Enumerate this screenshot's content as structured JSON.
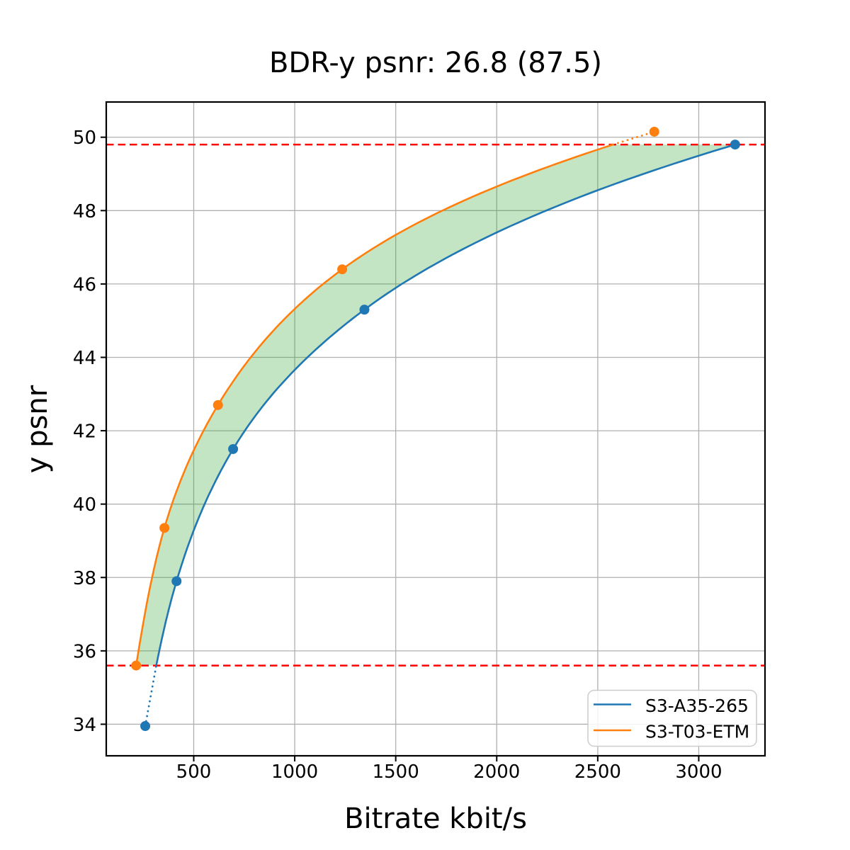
{
  "figure": {
    "background": "#ffffff"
  },
  "chart_data": {
    "type": "line",
    "title": "BDR-y psnr: 26.8 (87.5)",
    "xlabel": "Bitrate kbit/s",
    "ylabel": "y psnr",
    "xlim": [
      67,
      3328
    ],
    "ylim": [
      33.14,
      50.96
    ],
    "x_ticks": [
      500,
      1000,
      1500,
      2000,
      2500,
      3000
    ],
    "y_ticks": [
      34,
      36,
      38,
      40,
      42,
      44,
      46,
      48,
      50
    ],
    "grid": true,
    "grid_color": "#b0b0b0",
    "series": [
      {
        "name": "S3-A35-265",
        "color": "#1f77b4",
        "points": [
          [
            260,
            33.95
          ],
          [
            415,
            37.9
          ],
          [
            695,
            41.5
          ],
          [
            1345,
            45.3
          ],
          [
            3180,
            49.8
          ]
        ]
      },
      {
        "name": "S3-T03-ETM",
        "color": "#ff7f0e",
        "points": [
          [
            215,
            35.6
          ],
          [
            355,
            39.35
          ],
          [
            620,
            42.7
          ],
          [
            1235,
            46.4
          ],
          [
            2780,
            50.15
          ]
        ]
      }
    ],
    "overlap_psnr_range": [
      35.6,
      49.8
    ],
    "bound_lines": {
      "values": [
        35.6,
        49.8
      ],
      "color": "#ff0000",
      "style": "dashed"
    },
    "fill_between": {
      "color": "#2ca02c",
      "opacity": 0.28
    },
    "legend": {
      "position": "lower right"
    }
  }
}
